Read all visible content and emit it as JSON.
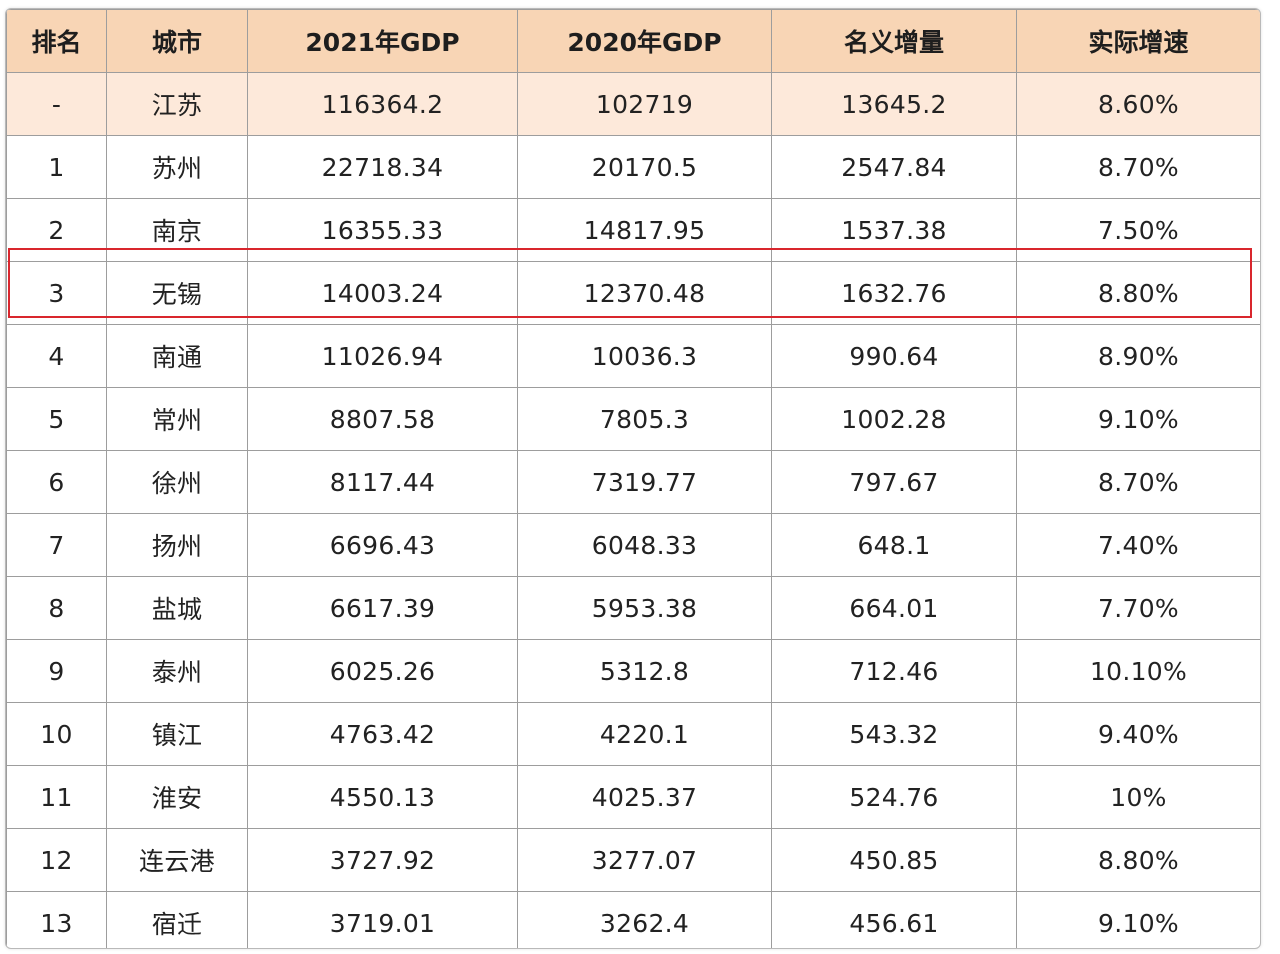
{
  "table": {
    "headers": [
      "排名",
      "城市",
      "2021年GDP",
      "2020年GDP",
      "名义增量",
      "实际增速"
    ],
    "rows": [
      [
        "-",
        "江苏",
        "116364.2",
        "102719",
        "13645.2",
        "8.60%"
      ],
      [
        "1",
        "苏州",
        "22718.34",
        "20170.5",
        "2547.84",
        "8.70%"
      ],
      [
        "2",
        "南京",
        "16355.33",
        "14817.95",
        "1537.38",
        "7.50%"
      ],
      [
        "3",
        "无锡",
        "14003.24",
        "12370.48",
        "1632.76",
        "8.80%"
      ],
      [
        "4",
        "南通",
        "11026.94",
        "10036.3",
        "990.64",
        "8.90%"
      ],
      [
        "5",
        "常州",
        "8807.58",
        "7805.3",
        "1002.28",
        "9.10%"
      ],
      [
        "6",
        "徐州",
        "8117.44",
        "7319.77",
        "797.67",
        "8.70%"
      ],
      [
        "7",
        "扬州",
        "6696.43",
        "6048.33",
        "648.1",
        "7.40%"
      ],
      [
        "8",
        "盐城",
        "6617.39",
        "5953.38",
        "664.01",
        "7.70%"
      ],
      [
        "9",
        "泰州",
        "6025.26",
        "5312.8",
        "712.46",
        "10.10%"
      ],
      [
        "10",
        "镇江",
        "4763.42",
        "4220.1",
        "543.32",
        "9.40%"
      ],
      [
        "11",
        "淮安",
        "4550.13",
        "4025.37",
        "524.76",
        "10%"
      ],
      [
        "12",
        "连云港",
        "3727.92",
        "3277.07",
        "450.85",
        "8.80%"
      ],
      [
        "13",
        "宿迁",
        "3719.01",
        "3262.4",
        "456.61",
        "9.10%"
      ]
    ]
  },
  "colors": {
    "header_bg": "#f8d5b5",
    "province_row_bg": "#fde9da",
    "grid_line": "#9d9d9d",
    "highlight_border": "#d9262d"
  }
}
